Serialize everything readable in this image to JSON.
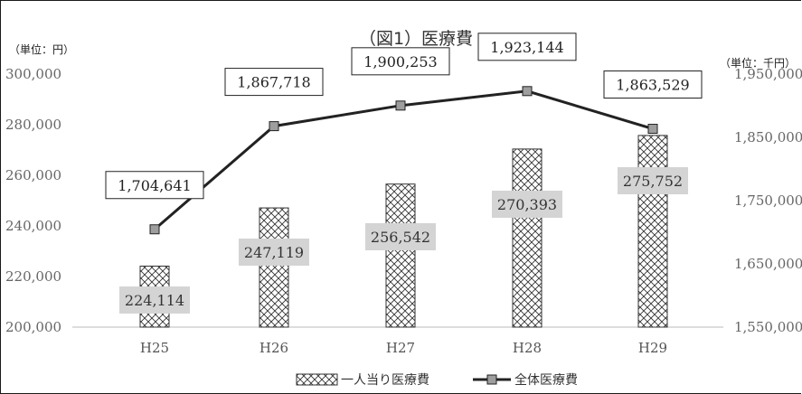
{
  "chart_data": {
    "type": "bar",
    "title": "（図1）医療費",
    "y_unit_left": "（単位：円）",
    "y_unit_right": "（単位：千円）",
    "categories": [
      "H25",
      "H26",
      "H27",
      "H28",
      "H29"
    ],
    "ylim_left": [
      200000,
      300000
    ],
    "yticks_left": [
      "200,000",
      "220,000",
      "240,000",
      "260,000",
      "280,000",
      "300,000"
    ],
    "ylim_right": [
      1550000,
      1950000
    ],
    "yticks_right": [
      "1,550,000",
      "1,650,000",
      "1,750,000",
      "1,850,000",
      "1,950,000"
    ],
    "series": [
      {
        "name": "一人当り医療費",
        "type": "bar",
        "axis": "left",
        "values": [
          224114,
          247119,
          256542,
          270393,
          275752
        ],
        "labels": [
          "224,114",
          "247,119",
          "256,542",
          "270,393",
          "275,752"
        ]
      },
      {
        "name": "全体医療費",
        "type": "line",
        "axis": "right",
        "values": [
          1704641,
          1867718,
          1900253,
          1923144,
          1863529
        ],
        "labels": [
          "1,704,641",
          "1,867,718",
          "1,900,253",
          "1,923,144",
          "1,863,529"
        ]
      }
    ],
    "legend_position": "bottom",
    "grid": false,
    "colors": {
      "bar_hatch": "#333333",
      "line": "#222222",
      "marker": "#9e9e9e",
      "bar_label_bg": "#d4d4d4"
    }
  }
}
